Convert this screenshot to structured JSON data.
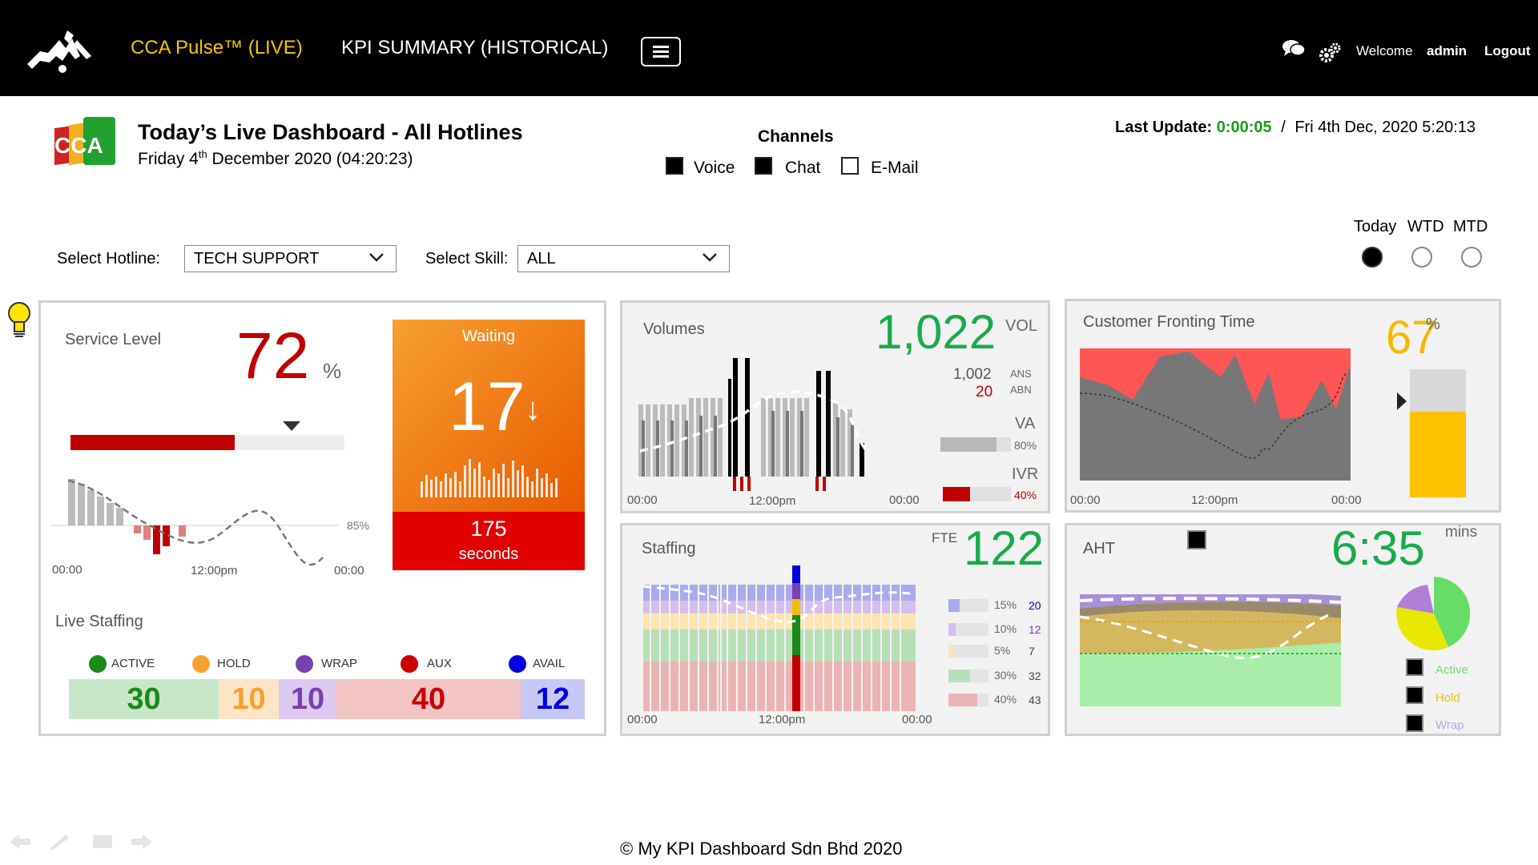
{
  "topbar": {
    "brand": "CCA Pulse™ (LIVE)",
    "kpi_link": "KPI SUMMARY (HISTORICAL)",
    "welcome": "Welcome",
    "user": "admin",
    "logout": "Logout"
  },
  "header": {
    "logo_text": "CCA",
    "title": "Today’s Live Dashboard - All Hotlines",
    "subtitle_day": "Friday 4",
    "subtitle_sup": "th",
    "subtitle_rest": " December 2020 (04:20:23)",
    "channels_title": "Channels",
    "channels": [
      {
        "label": "Voice",
        "checked": true
      },
      {
        "label": "Chat",
        "checked": true
      },
      {
        "label": "E-Mail",
        "checked": false
      }
    ],
    "last_update_label": "Last Update:",
    "last_update_elapsed": "0:00:05",
    "last_update_sep": "/",
    "last_update_time": "Fri 4th Dec, 2020 5:20:13"
  },
  "filters": {
    "hotline_label": "Select Hotline:",
    "hotline_value": "TECH SUPPORT",
    "skill_label": "Select Skill:",
    "skill_value": "ALL"
  },
  "period": {
    "options": [
      "Today",
      "WTD",
      "MTD"
    ],
    "selected": "Today"
  },
  "service_level": {
    "title": "Service Level",
    "value": "72",
    "unit": "%",
    "progress_fraction": 0.6,
    "target_label": "85%",
    "axis": [
      "00:00",
      "12:00pm",
      "00:00"
    ]
  },
  "waiting": {
    "title": "Waiting",
    "value": "17",
    "arrow": "↓",
    "seconds_value": "175",
    "seconds_label": "seconds"
  },
  "live_staffing": {
    "title": "Live Staffing",
    "legend": [
      {
        "label": "ACTIVE",
        "color": "#1a8a1a"
      },
      {
        "label": "HOLD",
        "color": "#f7a030"
      },
      {
        "label": "WRAP",
        "color": "#7a3fb0"
      },
      {
        "label": "AUX",
        "color": "#cc0000"
      },
      {
        "label": "AVAIL",
        "color": "#0000e0"
      }
    ],
    "values": [
      {
        "value": "30",
        "color": "#1a8a1a",
        "bg": "#c8e6c8"
      },
      {
        "value": "10",
        "color": "#f7a030",
        "bg": "#fde4c4"
      },
      {
        "value": "10",
        "color": "#7a3fb0",
        "bg": "#dccaf0"
      },
      {
        "value": "40",
        "color": "#cc0000",
        "bg": "#f2c4c4"
      },
      {
        "value": "12",
        "color": "#0000e0",
        "bg": "#c8c8f8"
      }
    ]
  },
  "volumes": {
    "title": "Volumes",
    "value": "1,022",
    "unit": "VOL",
    "answered": "1,002",
    "answered_label": "ANS",
    "abandoned": "20",
    "abandoned_label": "ABN",
    "va_label": "VA",
    "va_pct": "80%",
    "va_fraction": 0.8,
    "ivr_label": "IVR",
    "ivr_pct": "40%",
    "ivr_fraction": 0.4,
    "axis": [
      "00:00",
      "12:00pm",
      "00:00"
    ]
  },
  "cft": {
    "title": "Customer Fronting Time",
    "value": "67",
    "unit": "%",
    "gauge_fraction": 0.67,
    "axis": [
      "00:00",
      "12:00pm",
      "00:00"
    ]
  },
  "staffing": {
    "title": "Staffing",
    "fte_label": "FTE",
    "fte_value": "122",
    "rows": [
      {
        "pct": "15%",
        "count": "20",
        "color": "#aaaaee",
        "count_color": "#0000c0",
        "fraction": 0.15
      },
      {
        "pct": "10%",
        "count": "12",
        "color": "#d4c0ec",
        "count_color": "#7a3fb0",
        "fraction": 0.1
      },
      {
        "pct": "5%",
        "count": "7",
        "color": "#fde4b0",
        "count_color": "#444444",
        "fraction": 0.05
      },
      {
        "pct": "30%",
        "count": "32",
        "color": "#b8e0b8",
        "count_color": "#444444",
        "fraction": 0.3
      },
      {
        "pct": "40%",
        "count": "43",
        "color": "#ebb4b4",
        "count_color": "#444444",
        "fraction": 0.4
      }
    ],
    "axis": [
      "00:00",
      "12:00pm",
      "00:00"
    ]
  },
  "aht": {
    "title": "AHT",
    "value": "6:35",
    "unit": "mins",
    "legend": [
      {
        "label": "Active",
        "color": "#77d877"
      },
      {
        "label": "Hold",
        "color": "#f0c000"
      },
      {
        "label": "Wrap",
        "color": "#b8a8e0"
      }
    ]
  },
  "footer": {
    "text": "© My KPI Dashboard Sdn Bhd 2020"
  }
}
